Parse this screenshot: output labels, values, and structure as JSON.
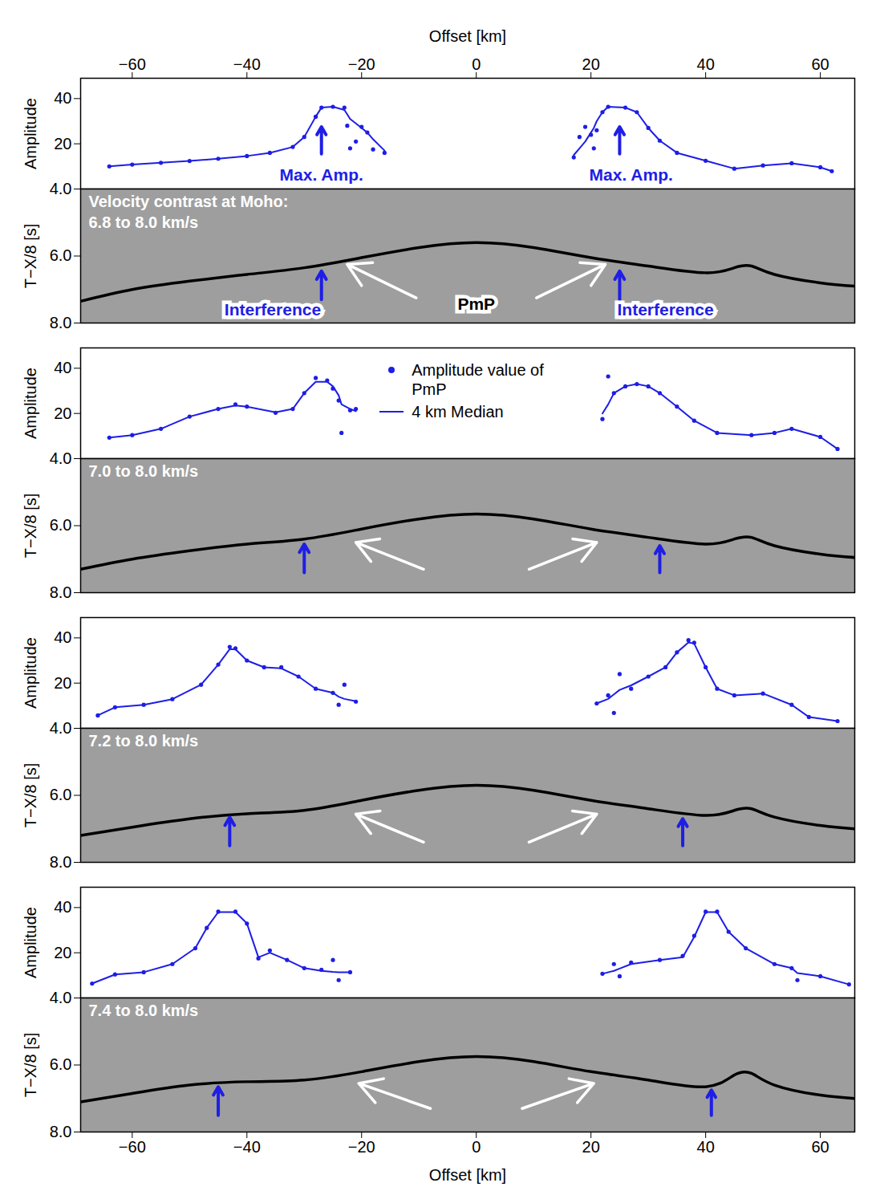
{
  "chart_data": [
    {
      "type": "scatter",
      "ylabel": "Amplitude",
      "xlabel": "Offset [km]",
      "xlim": [
        -69,
        66
      ],
      "xticks": [
        -60,
        -40,
        -20,
        0,
        20,
        40,
        60
      ],
      "ylim": [
        0,
        49
      ],
      "yticks": [
        20,
        40
      ],
      "tick_labels": true,
      "x": [
        -64,
        -60,
        -55,
        -50,
        -45,
        -40,
        -36,
        -32,
        -30,
        -28,
        -27,
        -25,
        -23,
        -22.5,
        -22,
        -21,
        -20,
        -19,
        -18,
        -16,
        0,
        17,
        18,
        19,
        20,
        20.5,
        21,
        22,
        23,
        26,
        28,
        30,
        32,
        35,
        40,
        45,
        50,
        55,
        60,
        62
      ],
      "series": [
        {
          "name": "Amplitude value of PmP",
          "type": "scatter",
          "color": "#1e1ee6",
          "marker": "dot",
          "values": [
            10,
            10.8,
            11.6,
            12.4,
            13.4,
            14.6,
            16,
            18.6,
            23,
            32,
            36,
            36.4,
            36,
            28,
            18,
            21,
            27.5,
            25,
            17.5,
            16,
            null,
            14,
            23,
            27.5,
            24,
            18,
            26,
            34,
            36.4,
            36,
            34,
            27,
            21.4,
            16,
            12.5,
            9,
            10.4,
            11.4,
            9.6,
            7.9
          ]
        },
        {
          "name": "4 km Median",
          "type": "line",
          "color": "#1e1ee6",
          "line_style": "solid",
          "values": [
            10,
            10.8,
            11.6,
            12.4,
            13.4,
            14.6,
            16,
            18.6,
            23,
            32,
            36,
            36.4,
            35,
            33,
            31,
            29,
            27,
            25,
            22,
            17,
            null,
            15,
            18,
            21,
            25,
            27,
            30,
            34,
            36.4,
            36,
            34,
            27,
            21.4,
            16,
            12.5,
            9,
            10.4,
            11.4,
            9.6,
            7.9
          ]
        }
      ],
      "annotations": [
        {
          "text": "Max. Amp.",
          "x": -27,
          "y": 6,
          "color": "#1e1ee6"
        },
        {
          "text": "Max. Amp.",
          "x": 27,
          "y": 6,
          "color": "#1e1ee6"
        }
      ],
      "arrows": [
        {
          "x1": -27,
          "y1": 15.5,
          "x2": -27,
          "y2": 27.5,
          "color": "#1e1ee6"
        },
        {
          "x1": 25,
          "y1": 15.5,
          "x2": 25,
          "y2": 27.5,
          "color": "#1e1ee6"
        }
      ]
    },
    {
      "type": "line",
      "ylabel": "T−X/8 [s]",
      "xlim": [
        -69,
        66
      ],
      "ylim": [
        8,
        4
      ],
      "yticks": [
        4,
        6,
        8
      ],
      "tick_labels": "y",
      "x": [
        -69,
        -60,
        -50,
        -40,
        -30,
        -20,
        -10,
        0,
        10,
        20,
        30,
        40,
        45,
        48,
        52,
        60,
        66
      ],
      "series": [
        {
          "type": "line",
          "color": "#000000",
          "values": [
            7.35,
            7.0,
            6.75,
            6.55,
            6.35,
            6.05,
            5.75,
            5.6,
            5.75,
            6.05,
            6.3,
            6.5,
            6.35,
            6.3,
            6.55,
            6.8,
            6.9
          ]
        }
      ],
      "annotations": [
        {
          "text": "Velocity contrast at Moho:",
          "color": "#ffffff"
        },
        {
          "text": "6.8 to 8.0 km/s",
          "color": "#ffffff"
        },
        {
          "text": "Interference",
          "x": -35.5,
          "y": 7.62,
          "color": "#1e1ee6"
        },
        {
          "text": "Interference",
          "x": 33,
          "y": 7.62,
          "color": "#1e1ee6"
        },
        {
          "text": "PmP",
          "x": 0,
          "y": 7.45,
          "color": "#000000"
        }
      ],
      "arrows": [
        {
          "x1": -10.5,
          "y1": 7.25,
          "x2": -22.5,
          "y2": 6.25,
          "color": "#ffffff"
        },
        {
          "x1": 10.5,
          "y1": 7.25,
          "x2": 22.5,
          "y2": 6.25,
          "color": "#ffffff"
        },
        {
          "x1": -27,
          "y1": 7.3,
          "x2": -27,
          "y2": 6.45,
          "color": "#1e1ee6"
        },
        {
          "x1": 25,
          "y1": 7.3,
          "x2": 25,
          "y2": 6.45,
          "color": "#1e1ee6"
        }
      ]
    },
    {
      "type": "scatter",
      "ylabel": "Amplitude",
      "xlim": [
        -69,
        66
      ],
      "ylim": [
        0,
        49
      ],
      "yticks": [
        20,
        40
      ],
      "tick_labels": "y",
      "legend": "top",
      "x": [
        -64,
        -60,
        -55,
        -50,
        -45,
        -42,
        -40,
        -35,
        -32,
        -30,
        -28,
        -26,
        -25,
        -24,
        -23.5,
        -22,
        -21,
        0,
        22,
        23,
        24,
        26,
        28,
        30,
        32,
        35,
        38,
        42,
        48,
        52,
        55,
        60,
        63
      ],
      "series": [
        {
          "name": "Amplitude value of PmP",
          "type": "scatter",
          "color": "#1e1ee6",
          "marker": "dot",
          "values": [
            9.3,
            10.4,
            13.2,
            18.6,
            22,
            24,
            23,
            20.3,
            22,
            29,
            35.7,
            34.6,
            31,
            25.7,
            11.4,
            21.4,
            22,
            null,
            17.5,
            36.4,
            29,
            32,
            33,
            32,
            29,
            23,
            16.8,
            11.4,
            10.4,
            11.4,
            13.2,
            9.6,
            4.3
          ]
        },
        {
          "name": "4 km Median",
          "type": "line",
          "color": "#1e1ee6",
          "line_style": "solid",
          "values": [
            9.3,
            10.4,
            13.2,
            18.6,
            22,
            23.5,
            23,
            20.5,
            22,
            29,
            34,
            34,
            32,
            28,
            24,
            22,
            21,
            null,
            20,
            24,
            29,
            32,
            33,
            32,
            29,
            23,
            16.8,
            11.4,
            10.4,
            11.4,
            13.2,
            9.6,
            4.3
          ]
        }
      ]
    },
    {
      "type": "line",
      "ylabel": "T−X/8 [s]",
      "xlim": [
        -69,
        66
      ],
      "ylim": [
        8,
        4
      ],
      "yticks": [
        4,
        6,
        8
      ],
      "tick_labels": "y",
      "x": [
        -69,
        -60,
        -50,
        -40,
        -30,
        -20,
        -10,
        0,
        10,
        20,
        30,
        40,
        45,
        48,
        52,
        60,
        66
      ],
      "series": [
        {
          "type": "line",
          "color": "#000000",
          "values": [
            7.3,
            7.0,
            6.75,
            6.55,
            6.4,
            6.1,
            5.8,
            5.65,
            5.8,
            6.1,
            6.35,
            6.55,
            6.4,
            6.35,
            6.6,
            6.85,
            6.95
          ]
        }
      ],
      "annotations": [
        {
          "text": "7.0 to 8.0 km/s",
          "color": "#ffffff"
        }
      ],
      "arrows": [
        {
          "x1": -9.2,
          "y1": 7.3,
          "x2": -21,
          "y2": 6.5,
          "color": "#ffffff"
        },
        {
          "x1": 9.2,
          "y1": 7.3,
          "x2": 21,
          "y2": 6.5,
          "color": "#ffffff"
        },
        {
          "x1": -30,
          "y1": 7.4,
          "x2": -30,
          "y2": 6.55,
          "color": "#1e1ee6"
        },
        {
          "x1": 32,
          "y1": 7.4,
          "x2": 32,
          "y2": 6.6,
          "color": "#1e1ee6"
        }
      ]
    },
    {
      "type": "scatter",
      "ylabel": "Amplitude",
      "xlim": [
        -69,
        66
      ],
      "ylim": [
        0,
        49
      ],
      "yticks": [
        20,
        40
      ],
      "tick_labels": "y",
      "x": [
        -66,
        -63,
        -58,
        -53,
        -48,
        -45,
        -43,
        -42,
        -40,
        -37,
        -34,
        -31,
        -28,
        -25,
        -24,
        -23,
        -21,
        0,
        21,
        23,
        24,
        25,
        27,
        30,
        33,
        35,
        37,
        38,
        40,
        42,
        45,
        50,
        55,
        58,
        63
      ],
      "series": [
        {
          "name": "Amplitude value of PmP",
          "type": "scatter",
          "color": "#1e1ee6",
          "marker": "dot",
          "values": [
            5.7,
            9.3,
            10.4,
            12.9,
            19.3,
            28.2,
            36,
            35.4,
            30,
            27,
            27,
            22.9,
            17.5,
            15.7,
            10.4,
            19.3,
            11.8,
            null,
            11,
            14.6,
            6.8,
            24,
            17.5,
            22.9,
            27,
            33.6,
            39,
            37.9,
            27,
            17.5,
            14.6,
            15.4,
            10.4,
            5,
            3.2
          ]
        },
        {
          "name": "4 km Median",
          "type": "line",
          "color": "#1e1ee6",
          "line_style": "solid",
          "values": [
            5.7,
            9.3,
            10.4,
            12.9,
            19.3,
            28.2,
            35,
            35,
            30,
            27,
            26.5,
            22.9,
            17.5,
            15.7,
            14,
            13,
            12,
            null,
            11,
            13,
            15,
            17,
            19,
            22.9,
            27,
            33.6,
            38,
            37.5,
            27,
            17.5,
            14.6,
            15.4,
            10.4,
            5,
            3.2
          ]
        }
      ]
    },
    {
      "type": "line",
      "ylabel": "T−X/8 [s]",
      "xlim": [
        -69,
        66
      ],
      "ylim": [
        8,
        4
      ],
      "yticks": [
        4,
        6,
        8
      ],
      "tick_labels": "y",
      "x": [
        -69,
        -60,
        -50,
        -40,
        -30,
        -20,
        -10,
        0,
        10,
        20,
        30,
        40,
        45,
        48,
        52,
        60,
        66
      ],
      "series": [
        {
          "type": "line",
          "color": "#000000",
          "values": [
            7.2,
            6.95,
            6.7,
            6.55,
            6.45,
            6.15,
            5.85,
            5.7,
            5.85,
            6.15,
            6.4,
            6.6,
            6.45,
            6.4,
            6.65,
            6.9,
            7.0
          ]
        }
      ],
      "annotations": [
        {
          "text": "7.2 to 8.0 km/s",
          "color": "#ffffff"
        }
      ],
      "arrows": [
        {
          "x1": -9.2,
          "y1": 7.4,
          "x2": -21,
          "y2": 6.56,
          "color": "#ffffff"
        },
        {
          "x1": 9.2,
          "y1": 7.4,
          "x2": 21,
          "y2": 6.56,
          "color": "#ffffff"
        },
        {
          "x1": -43,
          "y1": 7.5,
          "x2": -43,
          "y2": 6.65,
          "color": "#1e1ee6"
        },
        {
          "x1": 36,
          "y1": 7.5,
          "x2": 36,
          "y2": 6.7,
          "color": "#1e1ee6"
        }
      ]
    },
    {
      "type": "scatter",
      "ylabel": "Amplitude",
      "xlim": [
        -69,
        66
      ],
      "ylim": [
        0,
        49
      ],
      "yticks": [
        20,
        40
      ],
      "tick_labels": "y",
      "x": [
        -67,
        -63,
        -58,
        -53,
        -49,
        -47,
        -45,
        -42,
        -40,
        -38,
        -36,
        -33,
        -30,
        -27,
        -25,
        -24,
        -22,
        0,
        22,
        24,
        25,
        27,
        32,
        36,
        38,
        40,
        42,
        44,
        47,
        52,
        55,
        56,
        60,
        65
      ],
      "series": [
        {
          "name": "Amplitude value of PmP",
          "type": "scatter",
          "color": "#1e1ee6",
          "marker": "dot",
          "values": [
            6.4,
            10.4,
            11.4,
            15,
            22,
            31,
            38.2,
            38.2,
            32.9,
            17.5,
            21,
            16.8,
            13.2,
            12.5,
            16.8,
            7.9,
            11.4,
            null,
            10.7,
            15,
            9.6,
            15.7,
            16.8,
            18.6,
            27.5,
            38.2,
            38.2,
            29.3,
            22,
            15,
            13.2,
            7.9,
            9.6,
            6
          ]
        },
        {
          "name": "4 km Median",
          "type": "line",
          "color": "#1e1ee6",
          "line_style": "solid",
          "values": [
            6.4,
            10.4,
            11.4,
            15,
            22,
            31,
            38,
            38,
            33,
            18,
            20,
            16.8,
            13.2,
            12,
            11.5,
            11.4,
            11.4,
            null,
            10.7,
            12,
            13,
            15,
            16.8,
            18,
            27,
            38,
            38,
            29.3,
            22,
            15,
            13.2,
            11,
            9.6,
            6
          ]
        }
      ]
    },
    {
      "type": "line",
      "ylabel": "T−X/8 [s]",
      "xlabel": "Offset [km]",
      "xlim": [
        -69,
        66
      ],
      "xticks": [
        -60,
        -40,
        -20,
        0,
        20,
        40,
        60
      ],
      "ylim": [
        8,
        4
      ],
      "yticks": [
        4,
        6,
        8
      ],
      "tick_labels": true,
      "x": [
        -69,
        -60,
        -50,
        -40,
        -30,
        -20,
        -10,
        0,
        10,
        20,
        30,
        40,
        45,
        48,
        52,
        60,
        66
      ],
      "series": [
        {
          "type": "line",
          "color": "#000000",
          "values": [
            7.1,
            6.85,
            6.6,
            6.5,
            6.45,
            6.2,
            5.9,
            5.75,
            5.9,
            6.2,
            6.45,
            6.65,
            6.3,
            6.25,
            6.6,
            6.9,
            7.0
          ]
        }
      ],
      "annotations": [
        {
          "text": "7.4 to 8.0 km/s",
          "color": "#ffffff"
        }
      ],
      "arrows": [
        {
          "x1": -8,
          "y1": 7.3,
          "x2": -20.5,
          "y2": 6.55,
          "color": "#ffffff"
        },
        {
          "x1": 8,
          "y1": 7.3,
          "x2": 20.5,
          "y2": 6.55,
          "color": "#ffffff"
        },
        {
          "x1": -45,
          "y1": 7.5,
          "x2": -45,
          "y2": 6.65,
          "color": "#1e1ee6"
        },
        {
          "x1": 41,
          "y1": 7.5,
          "x2": 41,
          "y2": 6.75,
          "color": "#1e1ee6"
        }
      ]
    }
  ]
}
